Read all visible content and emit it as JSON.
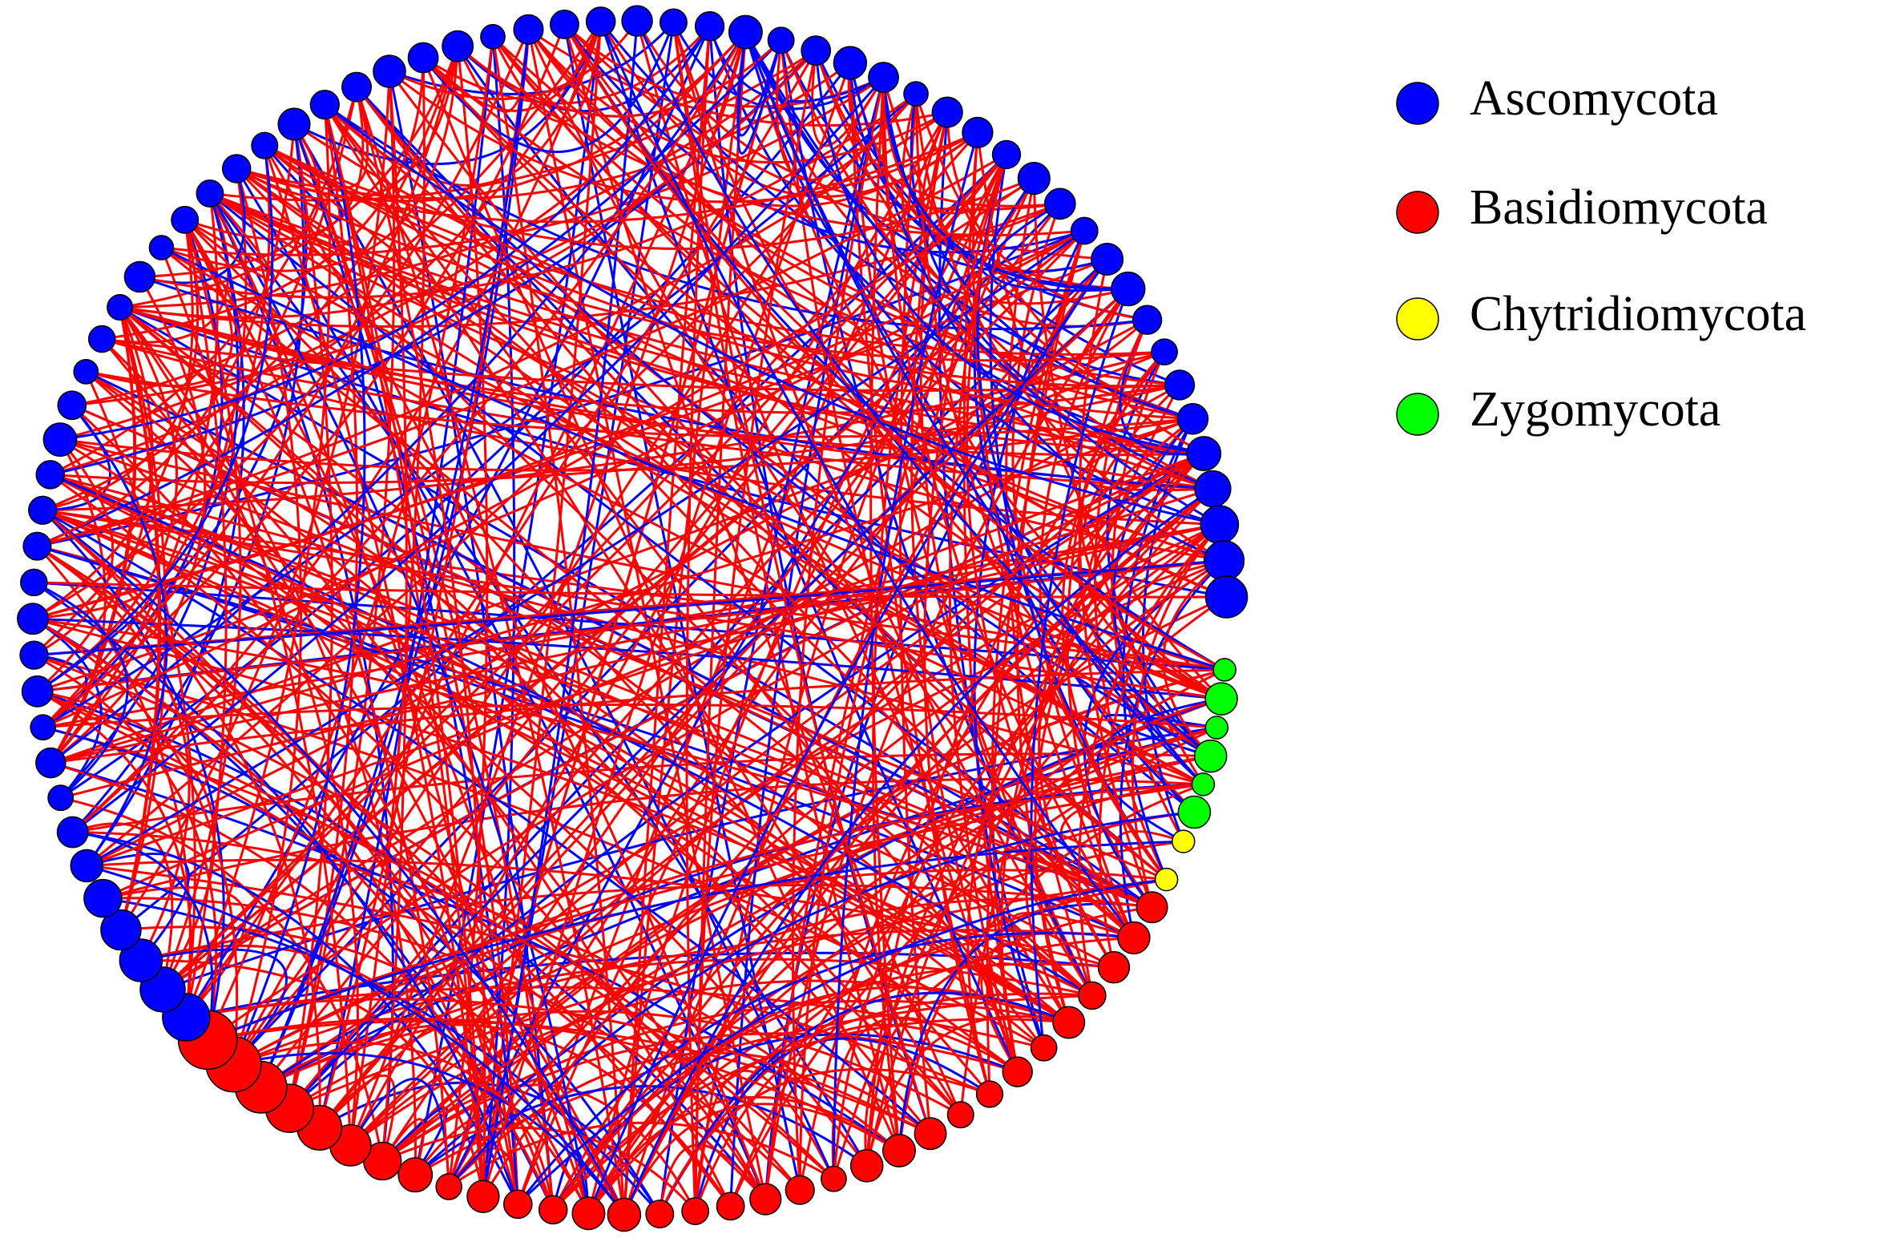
{
  "legend": {
    "items": [
      {
        "label": "Ascomycota",
        "color": "#0000ff"
      },
      {
        "label": "Basidiomycota",
        "color": "#ff0000"
      },
      {
        "label": "Chytridiomycota",
        "color": "#ffff00"
      },
      {
        "label": "Zygomycota",
        "color": "#00ff00"
      }
    ]
  }
}
